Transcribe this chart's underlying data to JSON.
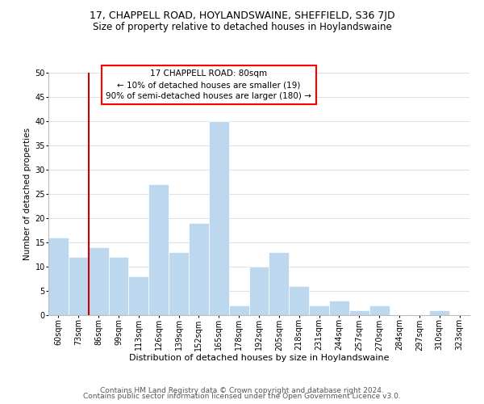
{
  "title": "17, CHAPPELL ROAD, HOYLANDSWAINE, SHEFFIELD, S36 7JD",
  "subtitle": "Size of property relative to detached houses in Hoylandswaine",
  "xlabel": "Distribution of detached houses by size in Hoylandswaine",
  "ylabel": "Number of detached properties",
  "bar_labels": [
    "60sqm",
    "73sqm",
    "86sqm",
    "99sqm",
    "113sqm",
    "126sqm",
    "139sqm",
    "152sqm",
    "165sqm",
    "178sqm",
    "192sqm",
    "205sqm",
    "218sqm",
    "231sqm",
    "244sqm",
    "257sqm",
    "270sqm",
    "284sqm",
    "297sqm",
    "310sqm",
    "323sqm"
  ],
  "bar_values": [
    16,
    12,
    14,
    12,
    8,
    27,
    13,
    19,
    40,
    2,
    10,
    13,
    6,
    2,
    3,
    1,
    2,
    0,
    0,
    1,
    0
  ],
  "bar_color": "#bdd7ee",
  "bar_edge_color": "#ffffff",
  "reference_line_color": "#cc0000",
  "annotation_line1": "17 CHAPPELL ROAD: 80sqm",
  "annotation_line2": "← 10% of detached houses are smaller (19)",
  "annotation_line3": "90% of semi-detached houses are larger (180) →",
  "ylim": [
    0,
    50
  ],
  "yticks": [
    0,
    5,
    10,
    15,
    20,
    25,
    30,
    35,
    40,
    45,
    50
  ],
  "background_color": "#ffffff",
  "grid_color": "#d3dce8",
  "footer_line1": "Contains HM Land Registry data © Crown copyright and database right 2024.",
  "footer_line2": "Contains public sector information licensed under the Open Government Licence v3.0.",
  "title_fontsize": 9,
  "subtitle_fontsize": 8.5,
  "xlabel_fontsize": 8,
  "ylabel_fontsize": 7.5,
  "tick_fontsize": 7,
  "annotation_fontsize": 7.5,
  "footer_fontsize": 6.5
}
